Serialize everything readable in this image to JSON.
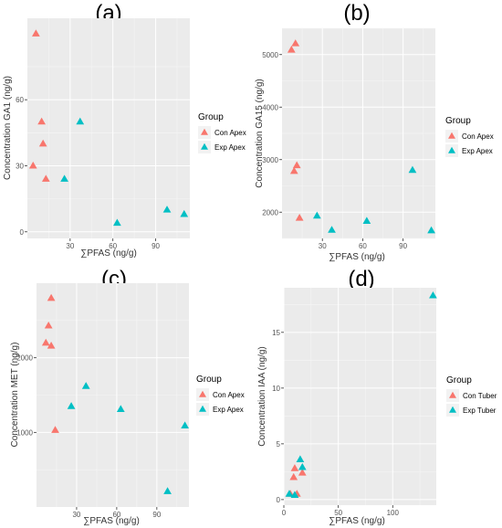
{
  "chart_data": [
    {
      "type": "scatter",
      "panel_label": "(a)",
      "xlabel": "∑PFAS (ng/g)",
      "ylabel": "Concentration GA1 (ng/g)",
      "xlim": [
        0,
        114
      ],
      "ylim": [
        -3,
        97
      ],
      "xticks": [
        30,
        60,
        90
      ],
      "yticks": [
        0,
        30,
        60
      ],
      "grid": true,
      "legend": {
        "title": "Group",
        "position": "right"
      },
      "series": [
        {
          "name": "Con Apex",
          "color": "#F8766D",
          "points": [
            [
              6,
              90
            ],
            [
              10,
              50
            ],
            [
              11,
              40
            ],
            [
              4,
              30
            ],
            [
              13,
              24
            ]
          ]
        },
        {
          "name": "Exp Apex",
          "color": "#00BFC4",
          "points": [
            [
              37,
              50
            ],
            [
              26,
              24
            ],
            [
              63,
              4
            ],
            [
              98,
              10
            ],
            [
              110,
              8
            ]
          ]
        }
      ]
    },
    {
      "type": "scatter",
      "panel_label": "(b)",
      "xlabel": "∑PFAS (ng/g)",
      "ylabel": "Concentration GA15 (ng/g)",
      "xlim": [
        0,
        114
      ],
      "ylim": [
        1500,
        5500
      ],
      "xticks": [
        30,
        60,
        90
      ],
      "yticks": [
        2000,
        3000,
        4000,
        5000
      ],
      "grid": true,
      "legend": {
        "title": "Group",
        "position": "right"
      },
      "series": [
        {
          "name": "Con Apex",
          "color": "#F8766D",
          "points": [
            [
              7,
              5090
            ],
            [
              10,
              5210
            ],
            [
              9,
              2780
            ],
            [
              11,
              2890
            ],
            [
              13,
              1890
            ]
          ]
        },
        {
          "name": "Exp Apex",
          "color": "#00BFC4",
          "points": [
            [
              26,
              1930
            ],
            [
              37,
              1660
            ],
            [
              63,
              1830
            ],
            [
              97,
              2800
            ],
            [
              111,
              1650
            ]
          ]
        }
      ]
    },
    {
      "type": "scatter",
      "panel_label": "(c)",
      "xlabel": "∑PFAS (ng/g)",
      "ylabel": "Concentration MET (ng/g)",
      "xlim": [
        0,
        114
      ],
      "ylim": [
        0,
        3000
      ],
      "xticks": [
        30,
        60,
        90
      ],
      "yticks": [
        1000,
        2000
      ],
      "grid": true,
      "legend": {
        "title": "Group",
        "position": "right"
      },
      "series": [
        {
          "name": "Con Apex",
          "color": "#F8766D",
          "points": [
            [
              11,
              2800
            ],
            [
              9,
              2430
            ],
            [
              7,
              2200
            ],
            [
              11,
              2160
            ],
            [
              14,
              1030
            ]
          ]
        },
        {
          "name": "Exp Apex",
          "color": "#00BFC4",
          "points": [
            [
              37,
              1620
            ],
            [
              26,
              1350
            ],
            [
              63,
              1310
            ],
            [
              111,
              1090
            ],
            [
              98,
              210
            ]
          ]
        }
      ]
    },
    {
      "type": "scatter",
      "panel_label": "(d)",
      "xlabel": "∑PFAS (ng/g)",
      "ylabel": "Concentration IAA (ng/g)",
      "xlim": [
        0,
        140
      ],
      "ylim": [
        -0.5,
        19
      ],
      "xticks": [
        0,
        50,
        100
      ],
      "yticks": [
        0,
        5,
        10,
        15
      ],
      "grid": true,
      "legend": {
        "title": "Group",
        "position": "right"
      },
      "series": [
        {
          "name": "Con Tuber",
          "color": "#F8766D",
          "points": [
            [
              10,
              2.8
            ],
            [
              9,
              2.0
            ],
            [
              17,
              2.4
            ],
            [
              12,
              0.5
            ],
            [
              6,
              0.5
            ]
          ]
        },
        {
          "name": "Exp Tuber",
          "color": "#00BFC4",
          "points": [
            [
              15,
              3.6
            ],
            [
              17,
              2.9
            ],
            [
              10,
              0.4
            ],
            [
              5,
              0.5
            ],
            [
              137,
              18.3
            ]
          ]
        }
      ]
    }
  ]
}
